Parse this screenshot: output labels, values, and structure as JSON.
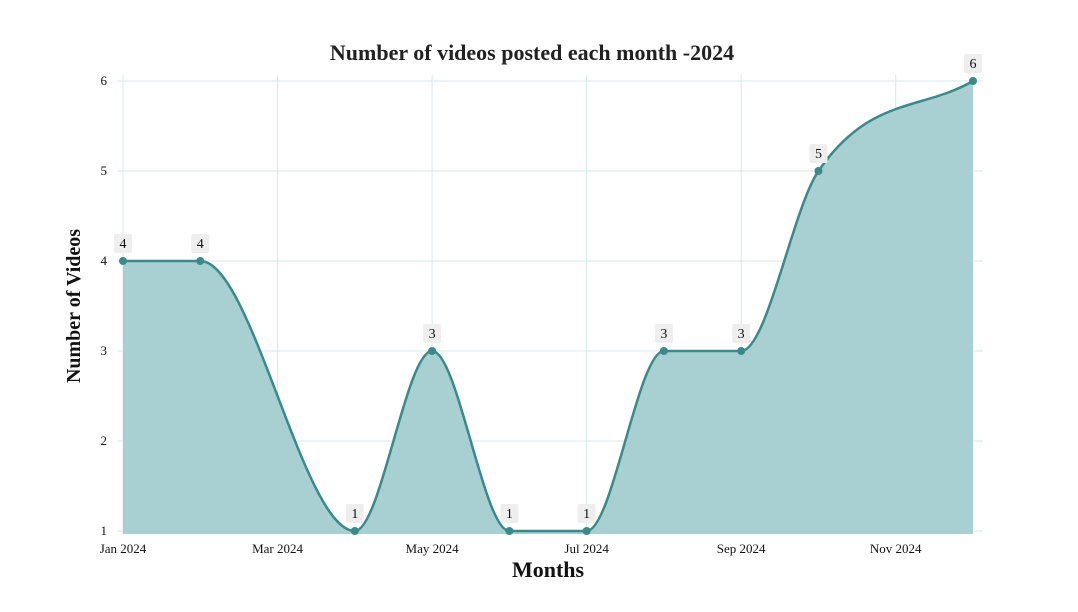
{
  "chart_data": {
    "type": "area",
    "title": "Number of videos posted each month -2024",
    "xlabel": "Months",
    "ylabel": "Number of Videos",
    "x": [
      "2024-01",
      "2024-02",
      "2024-03",
      "2024-04",
      "2024-05",
      "2024-06",
      "2024-07",
      "2024-08",
      "2024-09",
      "2024-10",
      "2024-11",
      "2024-12"
    ],
    "xticks": [
      {
        "value": "2024-01",
        "label": "Jan 2024"
      },
      {
        "value": "2024-03",
        "label": "Mar 2024"
      },
      {
        "value": "2024-05",
        "label": "May 2024"
      },
      {
        "value": "2024-07",
        "label": "Jul 2024"
      },
      {
        "value": "2024-09",
        "label": "Sep 2024"
      },
      {
        "value": "2024-11",
        "label": "Nov 2024"
      }
    ],
    "series": [
      {
        "values": [
          4,
          4,
          null,
          1,
          3,
          1,
          1,
          3,
          3,
          5,
          null,
          6
        ]
      }
    ],
    "yticks": [
      1,
      2,
      3,
      4,
      5,
      6
    ],
    "ylim": [
      1,
      6
    ],
    "grid": true,
    "legend": "none",
    "colors": {
      "line": "#3a8a8a",
      "fill": "#a8d0d2",
      "grid": "#d5e8e8",
      "label_box": "#eeeeee"
    }
  }
}
